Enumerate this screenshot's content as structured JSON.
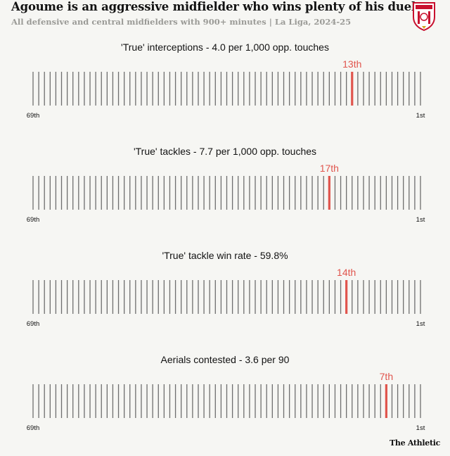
{
  "header": {
    "title": "Agoume is an aggressive midfielder who wins plenty of his duels",
    "subtitle": "All defensive and central midfielders with 900+ minutes | La Liga, 2024-25"
  },
  "crest": {
    "icon": "sevilla-fc-crest-icon"
  },
  "footer": {
    "brand": "The Athletic"
  },
  "colors": {
    "tick": "#6e6e6e",
    "highlight": "#e0554d",
    "background": "#f6f6f3"
  },
  "chart_data": [
    {
      "type": "rank-strip",
      "title": "'True' interceptions - 4.0 per 1,000 opp. touches",
      "total": 69,
      "rank": 13,
      "rank_label": "13th",
      "left_label": "69th",
      "right_label": "1st"
    },
    {
      "type": "rank-strip",
      "title": "'True' tackles - 7.7 per 1,000 opp. touches",
      "total": 69,
      "rank": 17,
      "rank_label": "17th",
      "left_label": "69th",
      "right_label": "1st"
    },
    {
      "type": "rank-strip",
      "title": "'True' tackle win rate - 59.8%",
      "total": 69,
      "rank": 14,
      "rank_label": "14th",
      "left_label": "69th",
      "right_label": "1st"
    },
    {
      "type": "rank-strip",
      "title": "Aerials contested - 3.6 per 90",
      "total": 69,
      "rank": 7,
      "rank_label": "7th",
      "left_label": "69th",
      "right_label": "1st"
    }
  ]
}
